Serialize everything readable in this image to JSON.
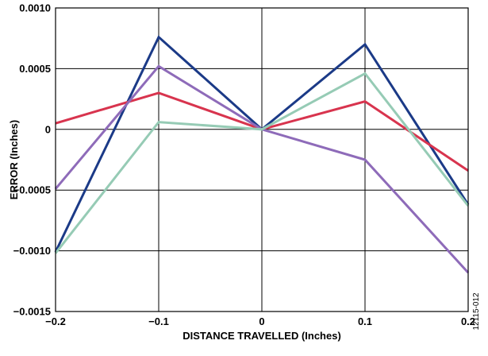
{
  "chart_data": {
    "type": "line",
    "title": "",
    "xlabel": "DISTANCE TRAVELLED (Inches)",
    "ylabel": "ERROR (Inches)",
    "xlim": [
      -0.2,
      0.2
    ],
    "ylim": [
      -0.0015,
      0.001
    ],
    "grid": true,
    "legend": "none",
    "x": [
      -0.2,
      -0.1,
      0,
      0.1,
      0.2
    ],
    "x_tick_labels": [
      "−0.2",
      "−0.1",
      "0",
      "0.1",
      "0.2"
    ],
    "y_ticks": [
      0.001,
      0.0005,
      0,
      -0.0005,
      -0.001,
      -0.0015
    ],
    "y_tick_labels": [
      "0.0010",
      "0.0005",
      "0",
      "−0.0005",
      "−0.0010",
      "−0.0015"
    ],
    "series": [
      {
        "color": "#1b3a87",
        "values": [
          -0.00101,
          0.00076,
          0,
          0.0007,
          -0.00062
        ]
      },
      {
        "color": "#d8344e",
        "values": [
          5e-05,
          0.0003,
          0,
          0.00023,
          -0.00034
        ]
      },
      {
        "color": "#8e6bb9",
        "values": [
          -0.00049,
          0.00052,
          0,
          -0.00025,
          -0.00118
        ]
      },
      {
        "color": "#96cbb5",
        "values": [
          -0.00102,
          6e-05,
          0,
          0.00046,
          -0.00063
        ]
      }
    ],
    "figure_id": "12115-012"
  }
}
